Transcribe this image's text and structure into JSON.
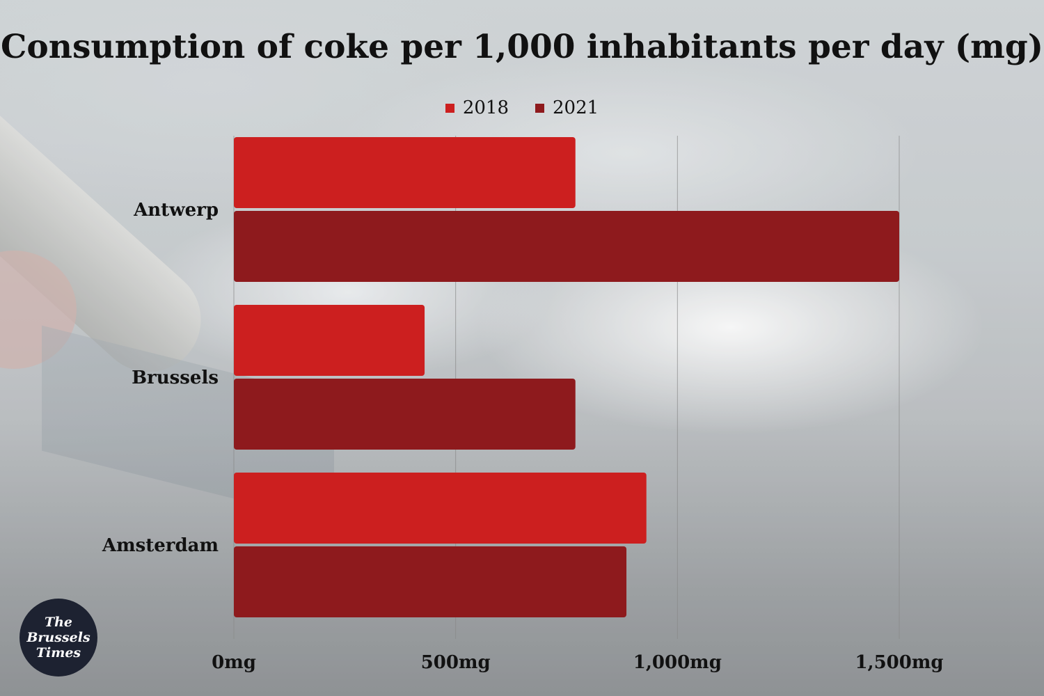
{
  "colors": {
    "series_2018": "#cc1f1f",
    "series_2021": "#8e1a1d",
    "grid": "#888888",
    "logo_bg": "#1d2231"
  },
  "logo": {
    "text": "The\nBrussels\nTimes"
  },
  "chart_data": {
    "type": "bar",
    "orientation": "horizontal",
    "title": "Consumption of coke per 1,000 inhabitants per day (mg)",
    "categories": [
      "Antwerp",
      "Brussels",
      "Amsterdam"
    ],
    "series": [
      {
        "name": "2018",
        "values": [
          770,
          430,
          930
        ]
      },
      {
        "name": "2021",
        "values": [
          1500,
          770,
          885
        ]
      }
    ],
    "xlim": [
      0,
      1500
    ],
    "x_ticks": [
      0,
      500,
      1000,
      1500
    ],
    "x_tick_labels": [
      "0mg",
      "500mg",
      "1,000mg",
      "1,500mg"
    ],
    "xlabel": "",
    "ylabel": "",
    "grid": "vertical",
    "legend_position": "top"
  }
}
